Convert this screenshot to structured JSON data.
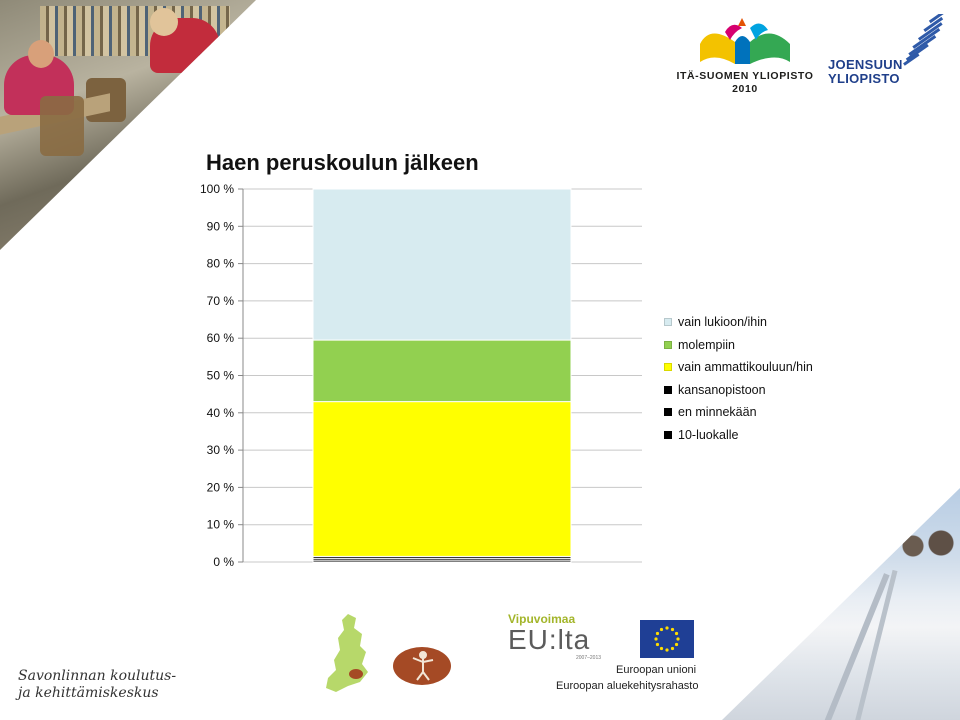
{
  "logos": {
    "uef_line1": "ITÄ-SUOMEN YLIOPISTO",
    "uef_line2": "2010",
    "joensuu_line1": "JOENSUUN",
    "joensuu_line2": "YLIOPISTO",
    "vipuvoimaa": "Vipuvoimaa",
    "eu_lta": "EU:lta",
    "vipu_years": "2007–2013",
    "eu_line1": "Euroopan unioni",
    "eu_line2": "Euroopan aluekehitysrahasto",
    "savonlinna_line1": "Savonlinnan koulutus-",
    "savonlinna_line2": "ja kehittämiskeskus"
  },
  "colors": {
    "vain_lukioon": "#d7ebf0",
    "molempiin": "#92d050",
    "vain_ammatti": "#ffff00",
    "kansanopistoon": "#000000",
    "en_minnekaan": "#000000",
    "luokalle10": "#000000",
    "eu_blue": "#1f3f95",
    "eu_star": "#ffdd00"
  },
  "chart_data": {
    "type": "bar",
    "title": "Haen peruskoulun jälkeen",
    "stacked": true,
    "categories": [
      ""
    ],
    "y_ticks": [
      "0 %",
      "10 %",
      "20 %",
      "30 %",
      "40 %",
      "50 %",
      "60 %",
      "70 %",
      "80 %",
      "90 %",
      "100 %"
    ],
    "ylim": [
      0,
      100
    ],
    "grid": true,
    "legend_position": "right",
    "series": [
      {
        "name": "10-luokalle",
        "values": [
          0.5
        ]
      },
      {
        "name": "en minnekään",
        "values": [
          0.5
        ]
      },
      {
        "name": "kansanopistoon",
        "values": [
          0.5
        ]
      },
      {
        "name": "vain ammattikouluun/hin",
        "values": [
          41.5
        ]
      },
      {
        "name": "molempiin",
        "values": [
          16.5
        ]
      },
      {
        "name": "vain lukioon/ihin",
        "values": [
          40.5
        ]
      }
    ],
    "legend_order": [
      "vain lukioon/ihin",
      "molempiin",
      "vain ammattikouluun/hin",
      "kansanopistoon",
      "en minnekään",
      "10-luokalle"
    ]
  }
}
